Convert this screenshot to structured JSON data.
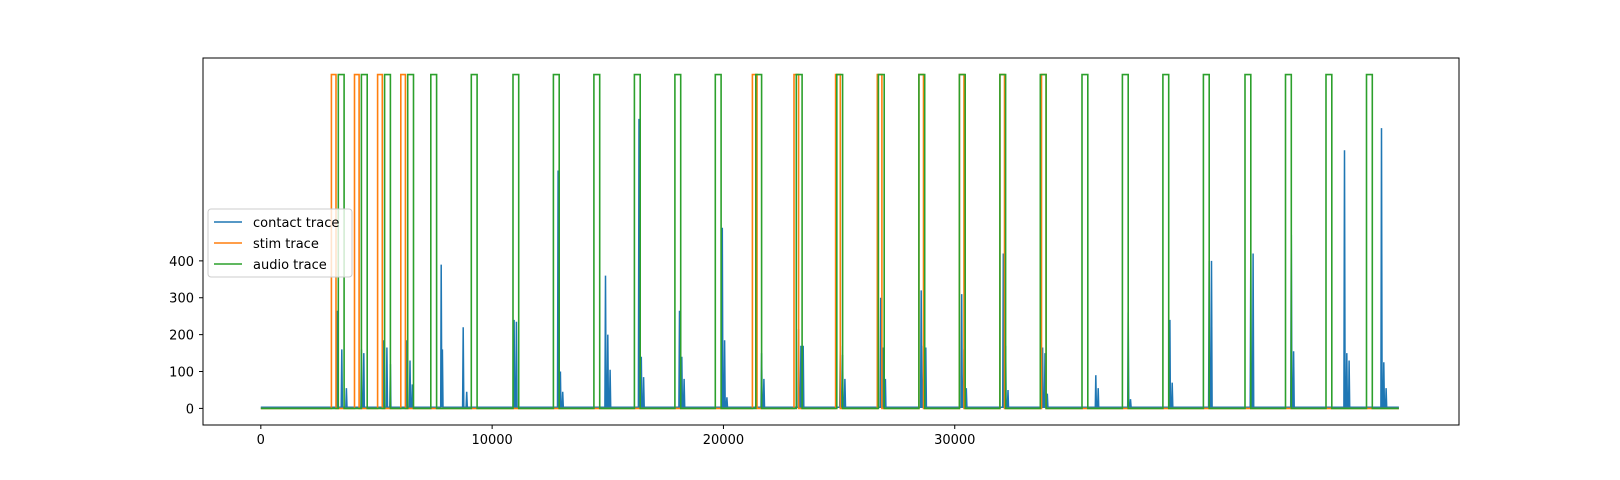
{
  "chart_data": {
    "type": "line",
    "title": "",
    "xlabel": "",
    "ylabel": "",
    "xlim": [
      -2500,
      51800
    ],
    "ylim": [
      -45,
      950
    ],
    "xticks": [
      0,
      10000,
      20000,
      30000
    ],
    "xtick_labels": [
      "0",
      "10000",
      "20000",
      "30000"
    ],
    "yticks": [
      0,
      100,
      200,
      300,
      400
    ],
    "ytick_labels": [
      "0",
      "100",
      "200",
      "300",
      "400"
    ],
    "grid": false,
    "legend": {
      "placement": "center-left",
      "entries": [
        "contact trace",
        "stim trace",
        "audio trace"
      ]
    },
    "x_end": 49200,
    "series": [
      {
        "name": "contact trace",
        "color": "#1f77b4",
        "baseline": 3,
        "spikes": [
          [
            3300,
            265
          ],
          [
            3500,
            160
          ],
          [
            3700,
            55
          ],
          [
            4350,
            160
          ],
          [
            4450,
            150
          ],
          [
            5300,
            185
          ],
          [
            5450,
            165
          ],
          [
            5600,
            120
          ],
          [
            6300,
            185
          ],
          [
            6450,
            130
          ],
          [
            6550,
            65
          ],
          [
            7800,
            390
          ],
          [
            7850,
            160
          ],
          [
            8750,
            220
          ],
          [
            8900,
            45
          ],
          [
            10950,
            240
          ],
          [
            11050,
            235
          ],
          [
            12850,
            645
          ],
          [
            12950,
            100
          ],
          [
            13050,
            45
          ],
          [
            14900,
            360
          ],
          [
            15000,
            200
          ],
          [
            15100,
            105
          ],
          [
            16350,
            785
          ],
          [
            16450,
            140
          ],
          [
            16550,
            85
          ],
          [
            18100,
            265
          ],
          [
            18200,
            140
          ],
          [
            18300,
            80
          ],
          [
            19950,
            490
          ],
          [
            20050,
            185
          ],
          [
            20150,
            30
          ],
          [
            21650,
            150
          ],
          [
            21750,
            80
          ],
          [
            23250,
            215
          ],
          [
            23350,
            170
          ],
          [
            23450,
            170
          ],
          [
            25050,
            170
          ],
          [
            25150,
            145
          ],
          [
            25250,
            80
          ],
          [
            26800,
            300
          ],
          [
            26900,
            165
          ],
          [
            27000,
            80
          ],
          [
            28550,
            320
          ],
          [
            28650,
            170
          ],
          [
            28750,
            165
          ],
          [
            30300,
            310
          ],
          [
            30400,
            160
          ],
          [
            30500,
            55
          ],
          [
            32100,
            420
          ],
          [
            32200,
            170
          ],
          [
            32300,
            50
          ],
          [
            33800,
            165
          ],
          [
            33900,
            150
          ],
          [
            34000,
            40
          ],
          [
            36100,
            90
          ],
          [
            36200,
            55
          ],
          [
            37500,
            260
          ],
          [
            37600,
            25
          ],
          [
            39300,
            240
          ],
          [
            39400,
            70
          ],
          [
            41000,
            400
          ],
          [
            41100,
            400
          ],
          [
            42800,
            420
          ],
          [
            42900,
            420
          ],
          [
            44550,
            470
          ],
          [
            44650,
            155
          ],
          [
            46850,
            700
          ],
          [
            46950,
            150
          ],
          [
            47050,
            130
          ],
          [
            48450,
            760
          ],
          [
            48550,
            125
          ],
          [
            48650,
            55
          ]
        ]
      },
      {
        "name": "stim trace",
        "color": "#ff7f0e",
        "low": 0,
        "high": 905,
        "pulses": [
          [
            3050,
            3250
          ],
          [
            4050,
            4250
          ],
          [
            5050,
            5250
          ],
          [
            6050,
            6250
          ],
          [
            21250,
            21450
          ],
          [
            23050,
            23250
          ],
          [
            24850,
            25050
          ],
          [
            26650,
            26850
          ],
          [
            28450,
            28650
          ],
          [
            30200,
            30400
          ],
          [
            31950,
            32150
          ],
          [
            33750,
            33950
          ]
        ]
      },
      {
        "name": "audio trace",
        "color": "#2ca02c",
        "low": 0,
        "high": 905,
        "pulses": [
          [
            3350,
            3600
          ],
          [
            4350,
            4600
          ],
          [
            5350,
            5600
          ],
          [
            6350,
            6600
          ],
          [
            7350,
            7600
          ],
          [
            9100,
            9350
          ],
          [
            10900,
            11150
          ],
          [
            12650,
            12900
          ],
          [
            14400,
            14650
          ],
          [
            16150,
            16400
          ],
          [
            17900,
            18150
          ],
          [
            19650,
            19900
          ],
          [
            21400,
            21650
          ],
          [
            23150,
            23400
          ],
          [
            24900,
            25150
          ],
          [
            26700,
            26950
          ],
          [
            28450,
            28700
          ],
          [
            30200,
            30450
          ],
          [
            31950,
            32200
          ],
          [
            33700,
            33950
          ],
          [
            35500,
            35750
          ],
          [
            37250,
            37500
          ],
          [
            39000,
            39250
          ],
          [
            40750,
            41000
          ],
          [
            42550,
            42800
          ],
          [
            44300,
            44550
          ],
          [
            46050,
            46300
          ],
          [
            47800,
            48050
          ]
        ]
      }
    ]
  }
}
